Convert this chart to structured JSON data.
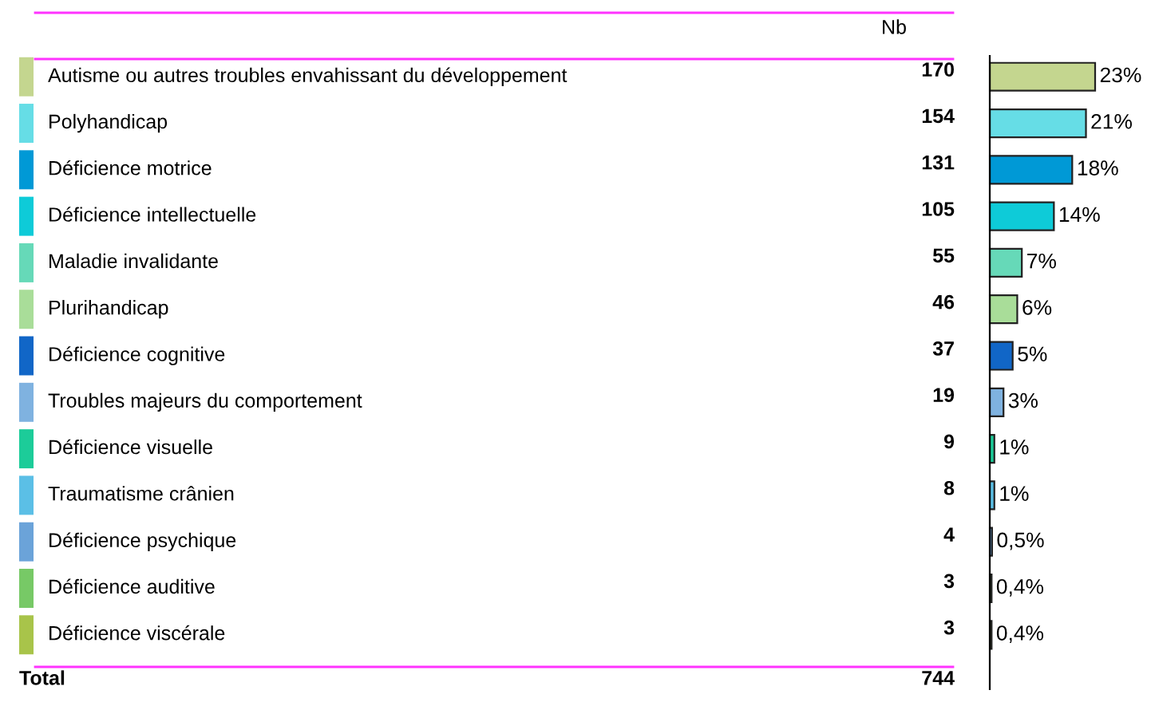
{
  "chart_data": {
    "type": "bar",
    "orientation": "horizontal",
    "categories": [
      "Autisme ou autres troubles envahissant du développement",
      "Polyhandicap",
      "Déficience motrice",
      "Déficience intellectuelle",
      "Maladie invalidante",
      "Plurihandicap",
      "Déficience cognitive",
      "Troubles majeurs du comportement",
      "Déficience visuelle",
      "Traumatisme crânien",
      "Déficience psychique",
      "Déficience auditive",
      "Déficience viscérale"
    ],
    "values": [
      23,
      21,
      18,
      14,
      7,
      6,
      5,
      3,
      1,
      1,
      0.5,
      0.4,
      0.4
    ],
    "colors": [
      "#c4d68f",
      "#66dde6",
      "#0099d6",
      "#0ecbd8",
      "#66d9b8",
      "#a9dd99",
      "#1166c7",
      "#7fb2e0",
      "#1ccc99",
      "#5bbfe6",
      "#6ba3d9",
      "#77c966",
      "#a8c44a"
    ],
    "value_labels": [
      "23%",
      "21%",
      "18%",
      "14%",
      "7%",
      "6%",
      "5%",
      "3%",
      "1%",
      "1%",
      "0,5%",
      "0,4%",
      "0,4%"
    ],
    "annotations": [
      "Nb",
      "170",
      "154",
      "131",
      "105",
      "55",
      "46",
      "37",
      "19",
      "9",
      "8",
      "4",
      "3",
      "3",
      "Total",
      "744"
    ]
  }
}
